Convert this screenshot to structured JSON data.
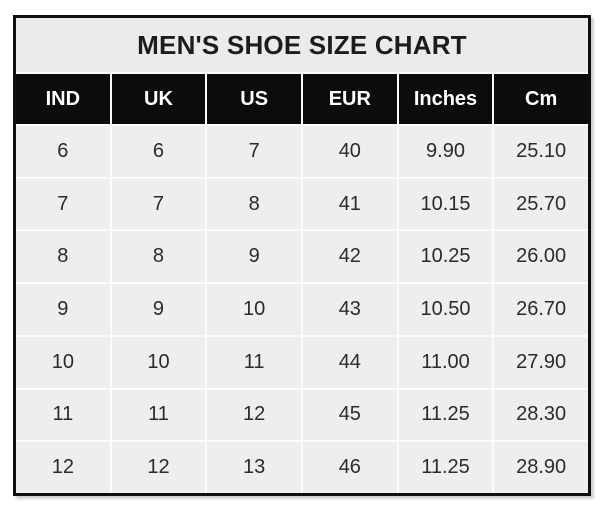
{
  "table": {
    "title": "MEN'S SHOE SIZE CHART",
    "columns": [
      "IND",
      "UK",
      "US",
      "EUR",
      "Inches",
      "Cm"
    ],
    "rows": [
      [
        "6",
        "6",
        "7",
        "40",
        "9.90",
        "25.10"
      ],
      [
        "7",
        "7",
        "8",
        "41",
        "10.15",
        "25.70"
      ],
      [
        "8",
        "8",
        "9",
        "42",
        "10.25",
        "26.00"
      ],
      [
        "9",
        "9",
        "10",
        "43",
        "10.50",
        "26.70"
      ],
      [
        "10",
        "10",
        "11",
        "44",
        "11.00",
        "27.90"
      ],
      [
        "11",
        "11",
        "12",
        "45",
        "11.25",
        "28.30"
      ],
      [
        "12",
        "12",
        "13",
        "46",
        "11.25",
        "28.90"
      ]
    ],
    "colors": {
      "border": "#0f0f0f",
      "header_bg": "#0c0c0c",
      "header_text": "#ffffff",
      "title_bg": "#ecebe9",
      "title_text": "#1c1c1c",
      "cell_bg": "#efeeec",
      "cell_text": "#2b2b2b",
      "gap": "#fbfbf9",
      "page_bg": "#ffffff"
    }
  },
  "chart_data": {
    "type": "table",
    "title": "MEN'S SHOE SIZE CHART",
    "columns": [
      "IND",
      "UK",
      "US",
      "EUR",
      "Inches",
      "Cm"
    ],
    "rows": [
      [
        6,
        6,
        7,
        40,
        9.9,
        25.1
      ],
      [
        7,
        7,
        8,
        41,
        10.15,
        25.7
      ],
      [
        8,
        8,
        9,
        42,
        10.25,
        26.0
      ],
      [
        9,
        9,
        10,
        43,
        10.5,
        26.7
      ],
      [
        10,
        10,
        11,
        44,
        11.0,
        27.9
      ],
      [
        11,
        11,
        12,
        45,
        11.25,
        28.3
      ],
      [
        12,
        12,
        13,
        46,
        11.25,
        28.9
      ]
    ]
  }
}
